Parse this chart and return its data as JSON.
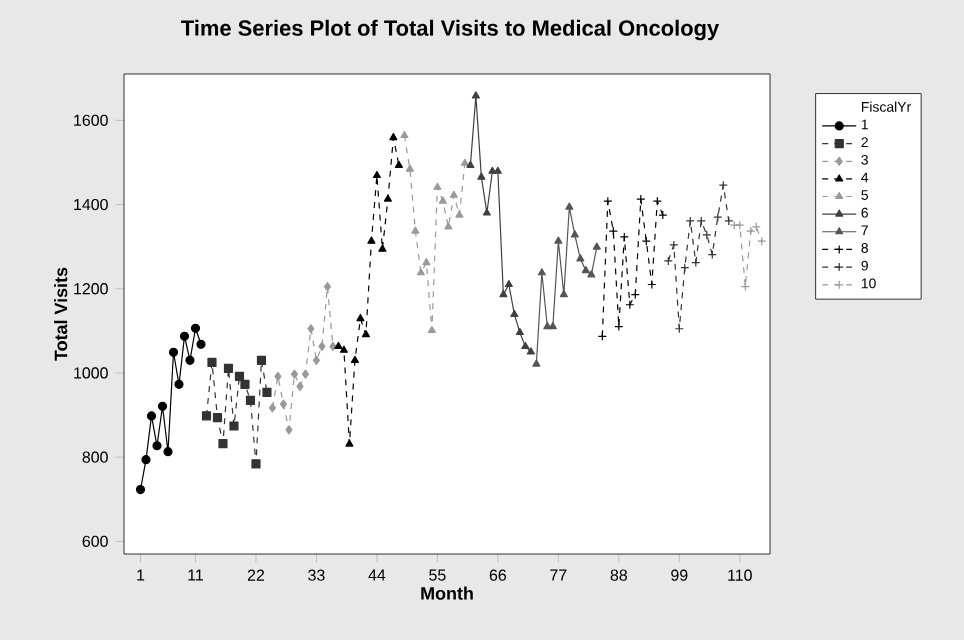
{
  "chart_data": {
    "type": "line",
    "title": "Time Series Plot of Total Visits to Medical Oncology",
    "xlabel": "Month",
    "ylabel": "Total Visits",
    "legend_title": "FiscalYr",
    "legend": "right",
    "xlim": [
      -2,
      115.5
    ],
    "ylim": [
      570,
      1710
    ],
    "xticks": [
      1,
      11,
      22,
      33,
      44,
      55,
      66,
      77,
      88,
      99,
      110
    ],
    "yticks": [
      600,
      800,
      1000,
      1200,
      1400,
      1600
    ],
    "grid": false,
    "series": [
      {
        "name": "1",
        "color": "#000000",
        "marker": "circle",
        "line_style": "solid",
        "x": [
          1,
          2,
          3,
          4,
          5,
          6,
          7,
          8,
          9,
          10,
          11,
          12
        ],
        "values": [
          723,
          794,
          898,
          827,
          921,
          813,
          1049,
          973,
          1087,
          1030,
          1106,
          1068
        ]
      },
      {
        "name": "2",
        "color": "#333333",
        "marker": "square",
        "line_style": "dashed",
        "x": [
          13,
          14,
          15,
          16,
          17,
          18,
          19,
          20,
          21,
          22,
          23,
          24
        ],
        "values": [
          898,
          1025,
          894,
          832,
          1011,
          874,
          992,
          973,
          935,
          784,
          1030,
          954
        ]
      },
      {
        "name": "3",
        "color": "#999999",
        "marker": "diamond",
        "line_style": "dashed",
        "x": [
          25,
          26,
          27,
          28,
          29,
          30,
          31,
          32,
          33,
          34,
          35,
          36
        ],
        "values": [
          917,
          992,
          926,
          865,
          997,
          968,
          997,
          1105,
          1030,
          1063,
          1205,
          1063
        ]
      },
      {
        "name": "4",
        "color": "#000000",
        "marker": "triangle",
        "line_style": "dashed",
        "x": [
          37,
          38,
          39,
          40,
          41,
          42,
          43,
          44,
          45,
          46,
          47,
          48
        ],
        "values": [
          1063,
          1054,
          831,
          1030,
          1129,
          1091,
          1313,
          1469,
          1294,
          1413,
          1559,
          1493
        ]
      },
      {
        "name": "5",
        "color": "#999999",
        "marker": "triangle",
        "line_style": "dashed",
        "x": [
          49,
          50,
          51,
          52,
          53,
          54,
          55,
          56,
          57,
          58,
          59,
          60
        ],
        "values": [
          1564,
          1484,
          1337,
          1238,
          1262,
          1101,
          1441,
          1408,
          1347,
          1422,
          1375,
          1498
        ]
      },
      {
        "name": "6",
        "color": "#404040",
        "marker": "triangle",
        "line_style": "solid",
        "x": [
          61,
          62,
          63,
          64,
          65,
          66,
          67,
          68,
          69,
          70,
          71,
          72
        ],
        "values": [
          1493,
          1658,
          1465,
          1380,
          1479,
          1479,
          1186,
          1210,
          1139,
          1096,
          1063,
          1050
        ]
      },
      {
        "name": "7",
        "color": "#555555",
        "marker": "triangle",
        "line_style": "solid",
        "x": [
          73,
          74,
          75,
          76,
          77,
          78,
          79,
          80,
          81,
          82,
          83,
          84
        ],
        "values": [
          1021,
          1238,
          1110,
          1110,
          1313,
          1186,
          1394,
          1328,
          1271,
          1243,
          1233,
          1299
        ]
      },
      {
        "name": "8",
        "color": "#000000",
        "marker": "cross",
        "line_style": "dashed",
        "x": [
          85,
          86,
          87,
          88,
          89,
          90,
          91,
          92,
          93,
          94,
          95,
          96
        ],
        "values": [
          1087,
          1408,
          1337,
          1110,
          1323,
          1162,
          1186,
          1413,
          1313,
          1210,
          1408,
          1375
        ]
      },
      {
        "name": "9",
        "color": "#333333",
        "marker": "cross",
        "line_style": "dashed",
        "x": [
          97,
          98,
          99,
          100,
          101,
          102,
          103,
          104,
          105,
          106,
          107,
          108
        ],
        "values": [
          1266,
          1304,
          1105,
          1250,
          1361,
          1262,
          1361,
          1328,
          1281,
          1370,
          1446,
          1361
        ]
      },
      {
        "name": "10",
        "color": "#999999",
        "marker": "cross",
        "line_style": "dashed",
        "x": [
          109,
          110,
          111,
          112,
          113,
          114
        ],
        "values": [
          1351,
          1351,
          1205,
          1337,
          1347,
          1313
        ]
      }
    ]
  }
}
